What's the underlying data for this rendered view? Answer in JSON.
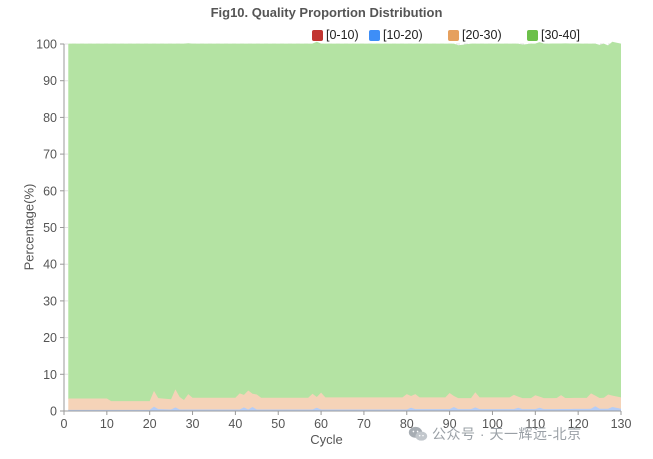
{
  "chart_data": {
    "type": "area",
    "stacked": true,
    "title": "Fig10. Quality Proportion Distribution",
    "xlabel": "Cycle",
    "ylabel": "Percentage(%)",
    "xlim": [
      0,
      130
    ],
    "ylim": [
      0,
      100
    ],
    "xticks": [
      0,
      10,
      20,
      30,
      40,
      50,
      60,
      70,
      80,
      90,
      100,
      110,
      120,
      130
    ],
    "yticks": [
      0,
      10,
      20,
      30,
      40,
      50,
      60,
      70,
      80,
      90,
      100
    ],
    "grid": "horizontal-dashed",
    "legend_position": "top-right",
    "series": [
      {
        "name": "[0-10)",
        "color": "#c23531",
        "fill": "#e9a3a3",
        "anchors": [
          [
            1,
            0
          ],
          [
            130,
            0
          ]
        ]
      },
      {
        "name": "[10-20)",
        "color": "#3e8ef7",
        "fill": "#b5cdf7",
        "anchors": [
          [
            1,
            0.3
          ],
          [
            20,
            0.3
          ],
          [
            21,
            1.2
          ],
          [
            22,
            0.5
          ],
          [
            25,
            0.4
          ],
          [
            26,
            1.0
          ],
          [
            27,
            0.4
          ],
          [
            41,
            0.4
          ],
          [
            42,
            1.0
          ],
          [
            43,
            0.4
          ],
          [
            44,
            1.1
          ],
          [
            45,
            0.4
          ],
          [
            58,
            0.4
          ],
          [
            59,
            0.9
          ],
          [
            60,
            0.4
          ],
          [
            80,
            0.4
          ],
          [
            81,
            0.9
          ],
          [
            82,
            0.5
          ],
          [
            90,
            0.5
          ],
          [
            91,
            1.1
          ],
          [
            92,
            0.5
          ],
          [
            95,
            0.5
          ],
          [
            96,
            1.0
          ],
          [
            97,
            0.5
          ],
          [
            105,
            0.5
          ],
          [
            106,
            0.9
          ],
          [
            107,
            0.5
          ],
          [
            110,
            0.5
          ],
          [
            111,
            0.9
          ],
          [
            112,
            0.5
          ],
          [
            123,
            0.6
          ],
          [
            124,
            1.3
          ],
          [
            125,
            0.6
          ],
          [
            127,
            0.6
          ],
          [
            128,
            1.1
          ],
          [
            130,
            0.6
          ]
        ]
      },
      {
        "name": "[20-30)",
        "color": "#e6a05e",
        "fill": "#f5d3b8",
        "anchors": [
          [
            1,
            3.1
          ],
          [
            10,
            3.1
          ],
          [
            11,
            2.4
          ],
          [
            20,
            2.4
          ],
          [
            21,
            4.3
          ],
          [
            22,
            3.0
          ],
          [
            25,
            2.8
          ],
          [
            26,
            4.9
          ],
          [
            27,
            3.4
          ],
          [
            28,
            2.6
          ],
          [
            29,
            4.2
          ],
          [
            30,
            3.2
          ],
          [
            40,
            3.2
          ],
          [
            41,
            4.4
          ],
          [
            42,
            3.4
          ],
          [
            43,
            5.2
          ],
          [
            44,
            3.6
          ],
          [
            45,
            4.1
          ],
          [
            46,
            3.2
          ],
          [
            57,
            3.2
          ],
          [
            58,
            4.3
          ],
          [
            59,
            2.9
          ],
          [
            60,
            4.6
          ],
          [
            61,
            3.3
          ],
          [
            79,
            3.3
          ],
          [
            80,
            4.2
          ],
          [
            81,
            3.2
          ],
          [
            82,
            4.1
          ],
          [
            83,
            3.2
          ],
          [
            89,
            3.2
          ],
          [
            90,
            4.4
          ],
          [
            91,
            3.0
          ],
          [
            95,
            3.0
          ],
          [
            96,
            4.1
          ],
          [
            97,
            3.2
          ],
          [
            104,
            3.2
          ],
          [
            105,
            3.9
          ],
          [
            106,
            3.0
          ],
          [
            109,
            3.0
          ],
          [
            110,
            3.8
          ],
          [
            111,
            3.0
          ],
          [
            115,
            3.0
          ],
          [
            116,
            3.8
          ],
          [
            117,
            3.0
          ],
          [
            122,
            3.0
          ],
          [
            123,
            4.2
          ],
          [
            124,
            2.9
          ],
          [
            126,
            3.0
          ],
          [
            127,
            3.9
          ],
          [
            128,
            3.1
          ],
          [
            130,
            3.1
          ]
        ]
      },
      {
        "name": "[30-40]",
        "color": "#6cc04a",
        "fill": "#b4e3a3",
        "anchors": [
          [
            1,
            96.6
          ],
          [
            10,
            96.6
          ],
          [
            11,
            97.3
          ],
          [
            20,
            97.3
          ],
          [
            21,
            94.5
          ],
          [
            22,
            96.5
          ],
          [
            25,
            96.8
          ],
          [
            26,
            94.1
          ],
          [
            27,
            96.2
          ],
          [
            28,
            97.0
          ],
          [
            29,
            95.5
          ],
          [
            30,
            96.4
          ],
          [
            40,
            96.4
          ],
          [
            41,
            95.2
          ],
          [
            42,
            95.6
          ],
          [
            43,
            94.4
          ],
          [
            44,
            95.3
          ],
          [
            45,
            95.5
          ],
          [
            46,
            96.4
          ],
          [
            57,
            96.4
          ],
          [
            58,
            95.3
          ],
          [
            59,
            96.7
          ],
          [
            60,
            95.0
          ],
          [
            61,
            96.3
          ],
          [
            79,
            96.3
          ],
          [
            80,
            95.4
          ],
          [
            81,
            95.9
          ],
          [
            82,
            95.4
          ],
          [
            83,
            96.3
          ],
          [
            89,
            96.3
          ],
          [
            90,
            95.1
          ],
          [
            91,
            95.9
          ],
          [
            95,
            96.5
          ],
          [
            96,
            94.9
          ],
          [
            97,
            96.3
          ],
          [
            104,
            96.3
          ],
          [
            105,
            95.6
          ],
          [
            106,
            96.1
          ],
          [
            109,
            96.5
          ],
          [
            110,
            95.7
          ],
          [
            111,
            96.5
          ],
          [
            115,
            96.5
          ],
          [
            116,
            95.7
          ],
          [
            117,
            96.5
          ],
          [
            122,
            96.4
          ],
          [
            123,
            95.2
          ],
          [
            124,
            95.8
          ],
          [
            126,
            96.4
          ],
          [
            127,
            95.0
          ],
          [
            128,
            96.3
          ],
          [
            130,
            96.3
          ]
        ]
      }
    ]
  },
  "watermark": {
    "text": "公众号 · 天一辉远-北京",
    "icon": "wechat-icon"
  }
}
